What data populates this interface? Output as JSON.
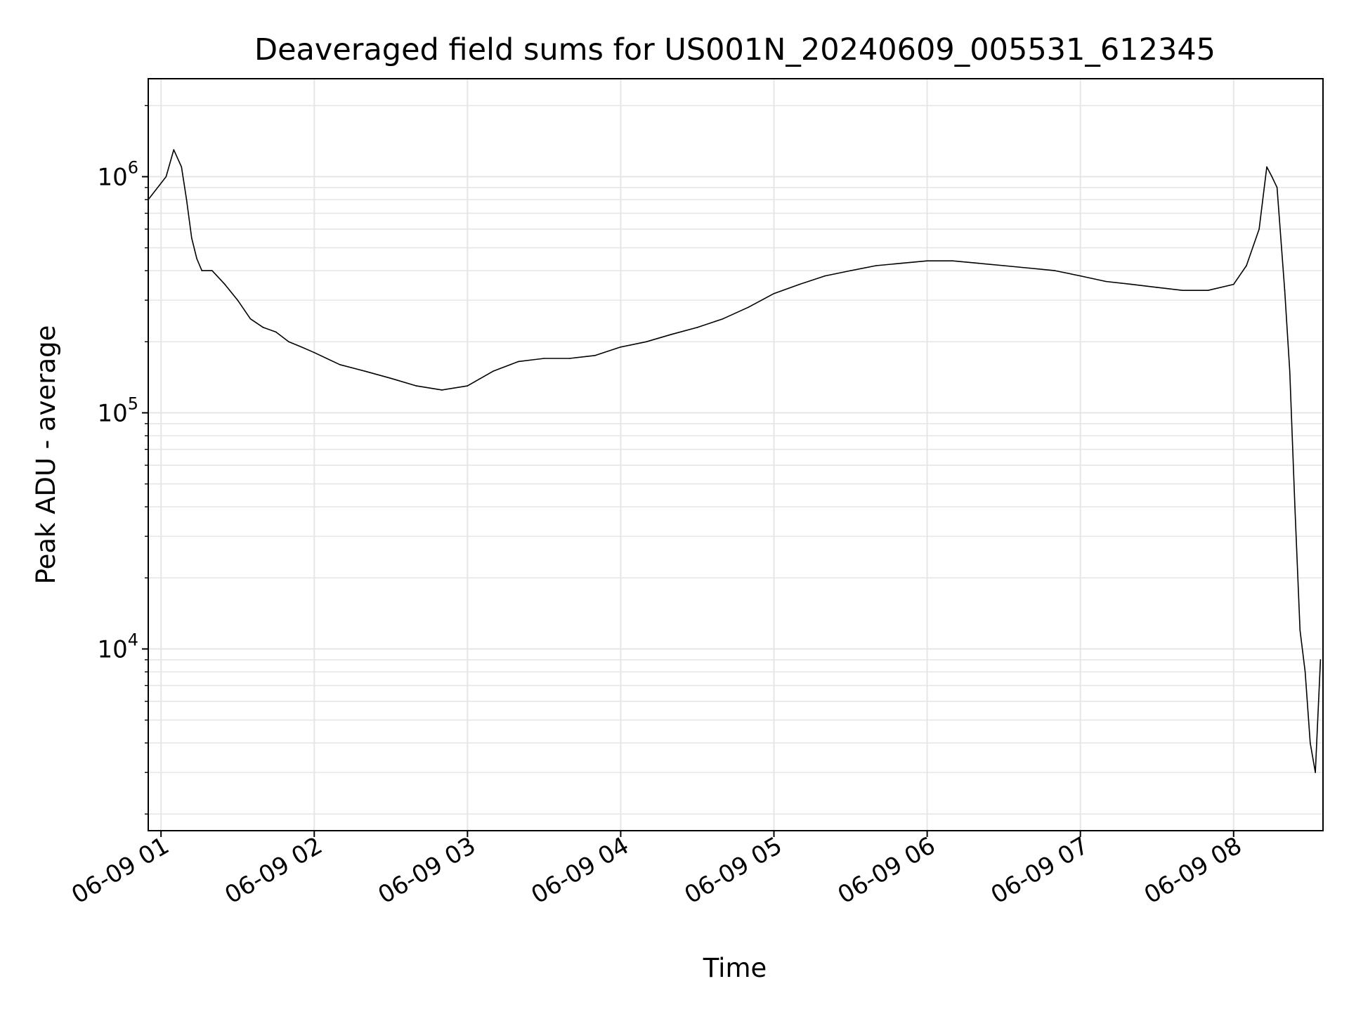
{
  "chart_data": {
    "type": "line",
    "title": "Deaveraged field sums for US001N_20240609_005531_612345",
    "xlabel": "Time",
    "ylabel": "Peak ADU - average",
    "yscale": "log",
    "ylim": [
      1700,
      2600000
    ],
    "xlim": [
      "06-09 00:55",
      "06-09 08:35"
    ],
    "grid": "on",
    "line_color": "#000000",
    "y_ticks": [
      {
        "base": "10",
        "exp": "4",
        "value": 10000
      },
      {
        "base": "10",
        "exp": "5",
        "value": 100000
      },
      {
        "base": "10",
        "exp": "6",
        "value": 1000000
      }
    ],
    "x_ticks": [
      {
        "label": "06-09 01",
        "value": "06-09 01:00"
      },
      {
        "label": "06-09 02",
        "value": "06-09 02:00"
      },
      {
        "label": "06-09 03",
        "value": "06-09 03:00"
      },
      {
        "label": "06-09 04",
        "value": "06-09 04:00"
      },
      {
        "label": "06-09 05",
        "value": "06-09 05:00"
      },
      {
        "label": "06-09 06",
        "value": "06-09 06:00"
      },
      {
        "label": "06-09 07",
        "value": "06-09 07:00"
      },
      {
        "label": "06-09 08",
        "value": "06-09 08:00"
      }
    ],
    "series": [
      {
        "x": [
          "06-09 00:55",
          "06-09 01:02",
          "06-09 01:05",
          "06-09 01:08",
          "06-09 01:10",
          "06-09 01:12",
          "06-09 01:14",
          "06-09 01:16",
          "06-09 01:20",
          "06-09 01:25",
          "06-09 01:30",
          "06-09 01:35",
          "06-09 01:40",
          "06-09 01:45",
          "06-09 01:50",
          "06-09 01:55",
          "06-09 02:00",
          "06-09 02:10",
          "06-09 02:20",
          "06-09 02:30",
          "06-09 02:40",
          "06-09 02:50",
          "06-09 03:00",
          "06-09 03:10",
          "06-09 03:20",
          "06-09 03:30",
          "06-09 03:40",
          "06-09 03:50",
          "06-09 04:00",
          "06-09 04:10",
          "06-09 04:20",
          "06-09 04:30",
          "06-09 04:40",
          "06-09 04:50",
          "06-09 05:00",
          "06-09 05:10",
          "06-09 05:20",
          "06-09 05:30",
          "06-09 05:40",
          "06-09 05:50",
          "06-09 06:00",
          "06-09 06:10",
          "06-09 06:20",
          "06-09 06:30",
          "06-09 06:40",
          "06-09 06:50",
          "06-09 07:00",
          "06-09 07:10",
          "06-09 07:20",
          "06-09 07:30",
          "06-09 07:40",
          "06-09 07:50",
          "06-09 08:00",
          "06-09 08:05",
          "06-09 08:10",
          "06-09 08:13",
          "06-09 08:15",
          "06-09 08:17",
          "06-09 08:20",
          "06-09 08:22",
          "06-09 08:24",
          "06-09 08:26",
          "06-09 08:28",
          "06-09 08:30",
          "06-09 08:32",
          "06-09 08:34"
        ],
        "y": [
          800000,
          1000000,
          1300000,
          1100000,
          800000,
          550000,
          450000,
          400000,
          400000,
          350000,
          300000,
          250000,
          230000,
          220000,
          200000,
          190000,
          180000,
          160000,
          150000,
          140000,
          130000,
          125000,
          130000,
          150000,
          165000,
          170000,
          170000,
          175000,
          190000,
          200000,
          215000,
          230000,
          250000,
          280000,
          320000,
          350000,
          380000,
          400000,
          420000,
          430000,
          440000,
          440000,
          430000,
          420000,
          410000,
          400000,
          380000,
          360000,
          350000,
          340000,
          330000,
          330000,
          350000,
          420000,
          600000,
          1100000,
          1000000,
          900000,
          330000,
          150000,
          40000,
          12000,
          8000,
          4000,
          3000,
          9000
        ]
      }
    ]
  }
}
